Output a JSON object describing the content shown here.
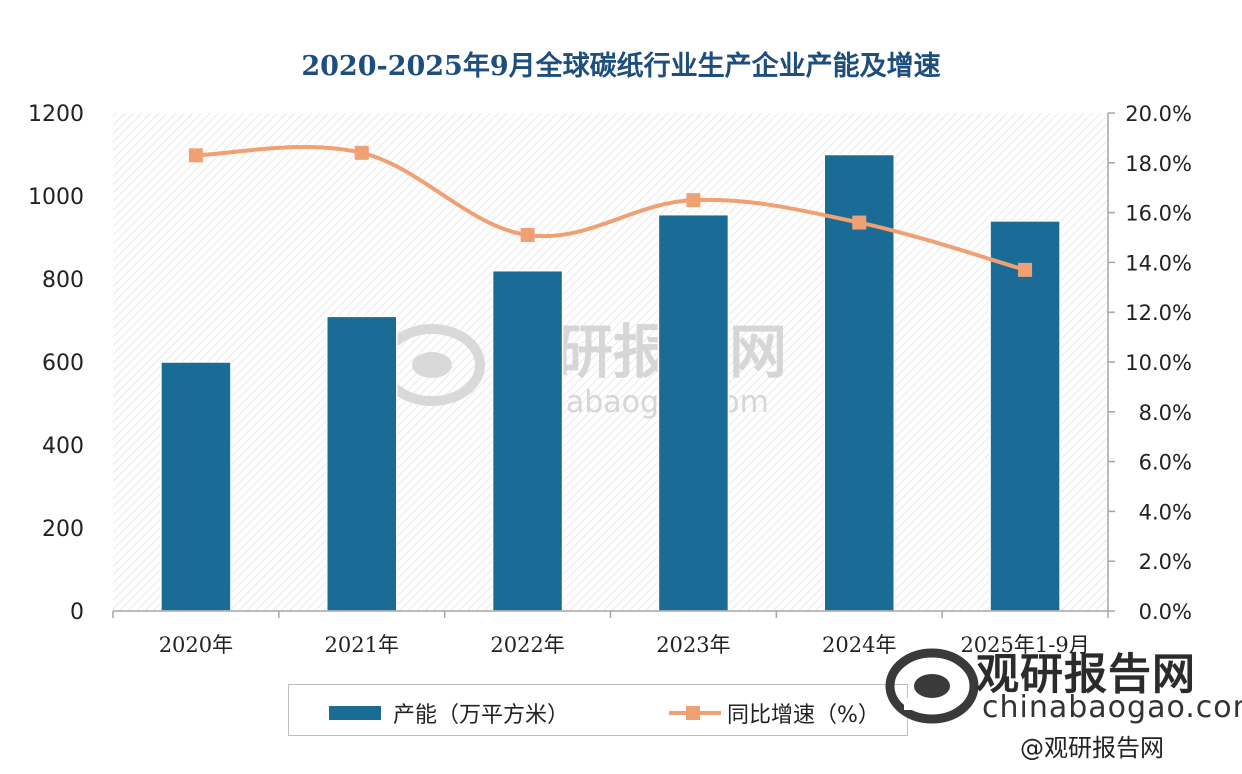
{
  "chart_data": {
    "type": "bar",
    "title": "2020-2025年9月全球碳纸行业生产企业产能及增速",
    "categories": [
      "2020年",
      "2021年",
      "2022年",
      "2023年",
      "2024年",
      "2025年1-9月"
    ],
    "series": [
      {
        "name": "产能（万平方米）",
        "type": "bar",
        "axis": "left",
        "color": "#1a6c96",
        "values": [
          600,
          710,
          820,
          955,
          1100,
          940
        ]
      },
      {
        "name": "同比增速（%）",
        "type": "line",
        "axis": "right",
        "color": "#f0a073",
        "values": [
          18.3,
          18.4,
          15.1,
          16.5,
          15.6,
          13.7
        ]
      }
    ],
    "y_left": {
      "min": 0,
      "max": 1200,
      "ticks": [
        "0",
        "200",
        "400",
        "600",
        "800",
        "1000",
        "1200"
      ]
    },
    "y_right": {
      "min": 0,
      "max": 20,
      "ticks": [
        "0.0%",
        "2.0%",
        "4.0%",
        "6.0%",
        "8.0%",
        "10.0%",
        "12.0%",
        "14.0%",
        "16.0%",
        "18.0%",
        "20.0%"
      ]
    },
    "legend_position": "bottom"
  },
  "watermark": {
    "center_brand": "观研报告网",
    "center_domain": "chinabaogao.com",
    "corner_brand": "观研报告网",
    "corner_domain": "chinabaogao.com",
    "corner_handle": "@观研报告网"
  }
}
